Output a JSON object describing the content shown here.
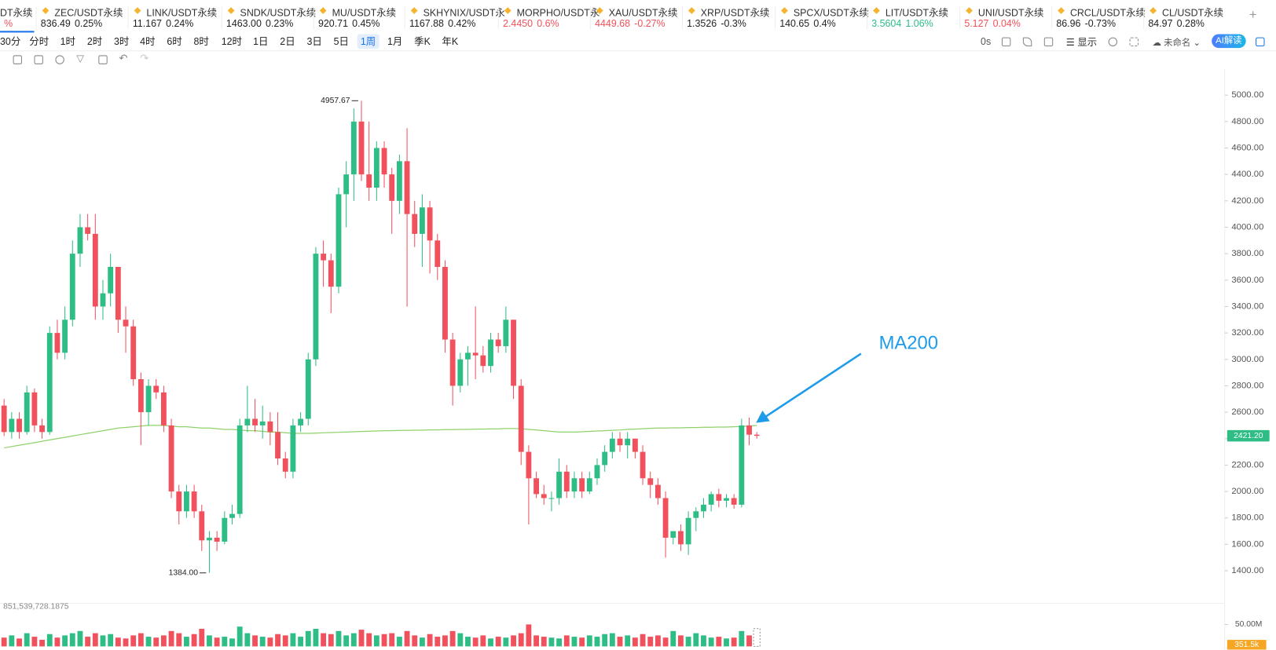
{
  "tickers": [
    {
      "name": "DT永续",
      "change": "%",
      "color": "#f0515c"
    },
    {
      "name": "ZEC/USDT永续",
      "price": "836.49",
      "change": "0.25%",
      "color": "#222222"
    },
    {
      "name": "LINK/USDT永续",
      "price": "11.167",
      "change": "0.24%",
      "color": "#222222"
    },
    {
      "name": "SNDK/USDT永续",
      "price": "1463.00",
      "change": "0.23%",
      "color": "#222222"
    },
    {
      "name": "MU/USDT永续",
      "price": "920.71",
      "change": "0.45%",
      "color": "#222222"
    },
    {
      "name": "SKHYNIX/USDT永",
      "price": "1167.88",
      "change": "0.42%",
      "color": "#222222"
    },
    {
      "name": "MORPHO/USDT永",
      "price": "2.4450",
      "change": "0.6%",
      "color": "#f0515c"
    },
    {
      "name": "XAU/USDT永续",
      "price": "4449.68",
      "change": "-0.27%",
      "color": "#f0515c"
    },
    {
      "name": "XRP/USDT永续",
      "price": "1.3526",
      "change": "-0.3%",
      "color": "#222222"
    },
    {
      "name": "SPCX/USDT永续",
      "price": "140.65",
      "change": "0.4%",
      "color": "#222222"
    },
    {
      "name": "LIT/USDT永续",
      "price": "3.5604",
      "change": "1.06%",
      "color": "#2ebd85"
    },
    {
      "name": "UNI/USDT永续",
      "price": "5.127",
      "change": "0.04%",
      "color": "#f0515c"
    },
    {
      "name": "CRCL/USDT永续",
      "price": "86.96",
      "change": "-0.73%",
      "color": "#222222"
    },
    {
      "name": "CL/USDT永续",
      "price": "84.97",
      "change": "0.28%",
      "color": "#222222"
    }
  ],
  "timeframes": [
    "30分",
    "分时",
    "1时",
    "2时",
    "3时",
    "4时",
    "6时",
    "8时",
    "12时",
    "1日",
    "2日",
    "3日",
    "5日",
    "1周",
    "1月",
    "季K",
    "年K"
  ],
  "selected_timeframe": 13,
  "toolbar": {
    "countdown": "0s",
    "display": "显示",
    "layout_name": "未命名",
    "ai": "AI解读"
  },
  "chart": {
    "type": "candlestick",
    "up_color": "#2ebd85",
    "down_color": "#f0515c",
    "ma_color": "#8fd16a",
    "annotation": "MA200",
    "ylim": [
      1166,
      5197
    ],
    "yticks": [
      {
        "value": 1400,
        "label": "1400.00"
      },
      {
        "value": 1600,
        "label": "1600.00"
      },
      {
        "value": 1800,
        "label": "1800.00"
      },
      {
        "value": 2000,
        "label": "2000.00"
      },
      {
        "value": 2200,
        "label": "2200.00"
      },
      {
        "value": 2400,
        "label": "2400.00"
      },
      {
        "value": 2600,
        "label": "2600.00"
      },
      {
        "value": 2800,
        "label": "2800.00"
      },
      {
        "value": 3000,
        "label": "3000.00"
      },
      {
        "value": 3200,
        "label": "3200.00"
      },
      {
        "value": 3400,
        "label": "3400.00"
      },
      {
        "value": 3600,
        "label": "3600.00"
      },
      {
        "value": 3800,
        "label": "3800.00"
      },
      {
        "value": 4000,
        "label": "4000.00"
      },
      {
        "value": 4200,
        "label": "4200.00"
      },
      {
        "value": 4400,
        "label": "4400.00"
      },
      {
        "value": 4600,
        "label": "4600.00"
      },
      {
        "value": 4800,
        "label": "4800.00"
      },
      {
        "value": 5000,
        "label": "5000.00"
      }
    ],
    "high_marker": {
      "value": 4957.67,
      "label": "4957.67"
    },
    "low_marker": {
      "value": 1384,
      "label": "1384.00"
    },
    "last_price": {
      "value": 2421.2,
      "label": "2421.20"
    },
    "ohlc": [
      [
        2650,
        2700,
        2420,
        2450
      ],
      [
        2450,
        2600,
        2400,
        2550
      ],
      [
        2550,
        2600,
        2400,
        2450
      ],
      [
        2450,
        2800,
        2430,
        2750
      ],
      [
        2750,
        2780,
        2450,
        2500
      ],
      [
        2500,
        2550,
        2400,
        2450
      ],
      [
        2450,
        3250,
        2430,
        3200
      ],
      [
        3200,
        3300,
        3000,
        3050
      ],
      [
        3050,
        3400,
        3000,
        3300
      ],
      [
        3300,
        3900,
        3250,
        3800
      ],
      [
        3800,
        4100,
        3700,
        4000
      ],
      [
        4000,
        4100,
        3900,
        3950
      ],
      [
        3950,
        4100,
        3300,
        3400
      ],
      [
        3400,
        3600,
        3300,
        3500
      ],
      [
        3500,
        3800,
        3400,
        3700
      ],
      [
        3700,
        3700,
        3200,
        3300
      ],
      [
        3300,
        3400,
        3050,
        3250
      ],
      [
        3250,
        3300,
        2800,
        2850
      ],
      [
        2850,
        2900,
        2350,
        2600
      ],
      [
        2600,
        2850,
        2500,
        2800
      ],
      [
        2800,
        2850,
        2700,
        2750
      ],
      [
        2750,
        2800,
        2450,
        2500
      ],
      [
        2500,
        2550,
        1950,
        2000
      ],
      [
        2000,
        2050,
        1750,
        1850
      ],
      [
        1850,
        2050,
        1800,
        2000
      ],
      [
        2000,
        2050,
        1800,
        1850
      ],
      [
        1850,
        1900,
        1550,
        1630
      ],
      [
        1630,
        1700,
        1384,
        1650
      ],
      [
        1650,
        1700,
        1550,
        1620
      ],
      [
        1620,
        1850,
        1600,
        1800
      ],
      [
        1800,
        1900,
        1750,
        1830
      ],
      [
        1830,
        2550,
        1800,
        2500
      ],
      [
        2500,
        2800,
        2450,
        2550
      ],
      [
        2550,
        2700,
        2450,
        2500
      ],
      [
        2500,
        2650,
        2400,
        2530
      ],
      [
        2530,
        2600,
        2350,
        2450
      ],
      [
        2450,
        2600,
        2200,
        2250
      ],
      [
        2250,
        2300,
        2100,
        2150
      ],
      [
        2150,
        2550,
        2100,
        2500
      ],
      [
        2500,
        2600,
        2450,
        2550
      ],
      [
        2550,
        3050,
        2500,
        3000
      ],
      [
        3000,
        3850,
        2950,
        3800
      ],
      [
        3800,
        3900,
        3550,
        3750
      ],
      [
        3750,
        3800,
        3350,
        3550
      ],
      [
        3550,
        4300,
        3500,
        4250
      ],
      [
        4250,
        4500,
        4000,
        4400
      ],
      [
        4400,
        4900,
        4200,
        4800
      ],
      [
        4800,
        4957.67,
        4350,
        4400
      ],
      [
        4400,
        4800,
        4200,
        4300
      ],
      [
        4300,
        4650,
        4200,
        4600
      ],
      [
        4600,
        4650,
        4300,
        4400
      ],
      [
        4400,
        4450,
        3950,
        4200
      ],
      [
        4200,
        4550,
        4100,
        4500
      ],
      [
        4500,
        4750,
        3400,
        4100
      ],
      [
        4100,
        4200,
        3850,
        3950
      ],
      [
        3950,
        4250,
        3700,
        4150
      ],
      [
        4150,
        4200,
        3650,
        3900
      ],
      [
        3900,
        3950,
        3600,
        3700
      ],
      [
        3700,
        3750,
        3050,
        3150
      ],
      [
        3150,
        3200,
        2650,
        2800
      ],
      [
        2800,
        3050,
        2750,
        3000
      ],
      [
        3000,
        3100,
        2800,
        3050
      ],
      [
        3050,
        3400,
        2850,
        3030
      ],
      [
        3030,
        3100,
        2900,
        2950
      ],
      [
        2950,
        3200,
        2900,
        3150
      ],
      [
        3150,
        3200,
        3050,
        3100
      ],
      [
        3100,
        3400,
        3050,
        3300
      ],
      [
        3300,
        3300,
        2700,
        2800
      ],
      [
        2800,
        2850,
        2200,
        2300
      ],
      [
        2300,
        2350,
        1750,
        2100
      ],
      [
        2100,
        2150,
        1950,
        1980
      ],
      [
        1980,
        2050,
        1900,
        1950
      ],
      [
        1950,
        2000,
        1850,
        1950
      ],
      [
        1950,
        2250,
        1900,
        2150
      ],
      [
        2150,
        2200,
        1950,
        2000
      ],
      [
        2000,
        2150,
        1950,
        2100
      ],
      [
        2100,
        2150,
        1950,
        2000
      ],
      [
        2000,
        2150,
        1980,
        2100
      ],
      [
        2100,
        2250,
        2050,
        2200
      ],
      [
        2200,
        2350,
        2150,
        2300
      ],
      [
        2300,
        2450,
        2250,
        2400
      ],
      [
        2400,
        2450,
        2300,
        2350
      ],
      [
        2350,
        2450,
        2250,
        2400
      ],
      [
        2400,
        2400,
        2250,
        2300
      ],
      [
        2300,
        2350,
        2050,
        2100
      ],
      [
        2100,
        2150,
        1950,
        2050
      ],
      [
        2050,
        2100,
        1900,
        1950
      ],
      [
        1950,
        2000,
        1500,
        1650
      ],
      [
        1650,
        1700,
        1600,
        1700
      ],
      [
        1700,
        1750,
        1550,
        1600
      ],
      [
        1600,
        1850,
        1520,
        1800
      ],
      [
        1800,
        1880,
        1700,
        1850
      ],
      [
        1850,
        1950,
        1800,
        1900
      ],
      [
        1900,
        2000,
        1850,
        1980
      ],
      [
        1980,
        2020,
        1880,
        1930
      ],
      [
        1930,
        1980,
        1880,
        1950
      ],
      [
        1950,
        1980,
        1870,
        1900
      ],
      [
        1900,
        2550,
        1880,
        2500
      ],
      [
        2500,
        2560,
        2350,
        2430
      ],
      [
        2430,
        2450,
        2400,
        2421.2
      ]
    ],
    "ma200": [
      2330,
      2340,
      2350,
      2360,
      2370,
      2380,
      2390,
      2400,
      2410,
      2420,
      2430,
      2440,
      2450,
      2460,
      2470,
      2480,
      2485,
      2490,
      2495,
      2500,
      2500,
      2500,
      2495,
      2490,
      2490,
      2485,
      2480,
      2480,
      2475,
      2470,
      2470,
      2465,
      2460,
      2460,
      2455,
      2450,
      2450,
      2445,
      2440,
      2440,
      2440,
      2442,
      2444,
      2446,
      2448,
      2450,
      2452,
      2454,
      2456,
      2458,
      2460,
      2460,
      2462,
      2462,
      2464,
      2464,
      2466,
      2466,
      2468,
      2468,
      2470,
      2470,
      2472,
      2472,
      2474,
      2474,
      2476,
      2476,
      2475,
      2470,
      2465,
      2460,
      2455,
      2450,
      2450,
      2450,
      2452,
      2455,
      2458,
      2460,
      2463,
      2466,
      2470,
      2472,
      2475,
      2478,
      2480,
      2480,
      2482,
      2482,
      2484,
      2484,
      2486,
      2486,
      2488,
      2488,
      2490,
      2492,
      2495,
      2500
    ],
    "volume": {
      "total_label": "851,539,728.1875",
      "last_label": "351.5k",
      "ylim": [
        0,
        87
      ],
      "yticks": [
        {
          "value": 50,
          "label": "50.00M"
        }
      ],
      "values": [
        20,
        25,
        18,
        30,
        22,
        15,
        28,
        20,
        25,
        30,
        35,
        22,
        30,
        25,
        28,
        20,
        18,
        25,
        30,
        22,
        20,
        25,
        35,
        30,
        22,
        28,
        40,
        25,
        20,
        22,
        18,
        45,
        30,
        25,
        22,
        20,
        28,
        25,
        30,
        22,
        35,
        40,
        30,
        28,
        35,
        25,
        30,
        38,
        30,
        25,
        28,
        30,
        22,
        35,
        25,
        20,
        28,
        22,
        25,
        35,
        30,
        22,
        20,
        25,
        18,
        22,
        20,
        25,
        30,
        50,
        25,
        22,
        20,
        18,
        25,
        22,
        20,
        25,
        22,
        28,
        30,
        22,
        25,
        20,
        28,
        22,
        25,
        20,
        35,
        25,
        22,
        30,
        25,
        20,
        22,
        18,
        20,
        35,
        25,
        0.3515
      ]
    }
  }
}
